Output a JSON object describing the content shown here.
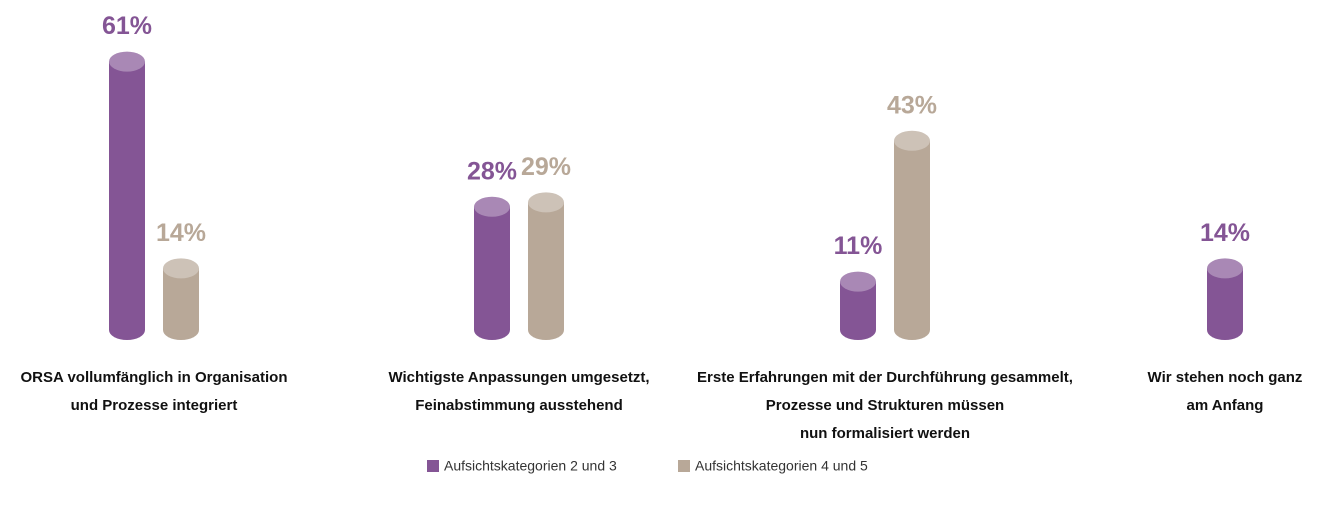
{
  "chart_data": {
    "type": "bar",
    "categories": [
      [
        "ORSA vollumfänglich in Organisation",
        "und Prozesse integriert"
      ],
      [
        "Wichtigste Anpassungen umgesetzt,",
        "Feinabstimmung ausstehend"
      ],
      [
        "Erste Erfahrungen mit der Durchführung gesammelt,",
        "Prozesse und Strukturen müssen",
        "nun formalisiert werden"
      ],
      [
        "Wir stehen noch ganz",
        "am Anfang"
      ]
    ],
    "series": [
      {
        "name": "Aufsichtskategorien 2 und 3",
        "color": "#845595",
        "values": [
          61,
          28,
          11,
          14
        ],
        "value_labels": [
          "61%",
          "28%",
          "11%",
          "14%"
        ]
      },
      {
        "name": "Aufsichtskategorien 4 und 5",
        "color": "#b8a898",
        "values": [
          14,
          29,
          43,
          null
        ],
        "value_labels": [
          "14%",
          "29%",
          "43%",
          null
        ]
      }
    ]
  }
}
